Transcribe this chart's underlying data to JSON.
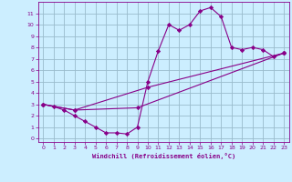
{
  "xlabel": "Windchill (Refroidissement éolien,°C)",
  "background_color": "#cceeff",
  "grid_color": "#99bbcc",
  "line_color": "#880088",
  "xlim": [
    -0.5,
    23.5
  ],
  "ylim": [
    -0.3,
    12
  ],
  "xticks": [
    0,
    1,
    2,
    3,
    4,
    5,
    6,
    7,
    8,
    9,
    10,
    11,
    12,
    13,
    14,
    15,
    16,
    17,
    18,
    19,
    20,
    21,
    22,
    23
  ],
  "yticks": [
    0,
    1,
    2,
    3,
    4,
    5,
    6,
    7,
    8,
    9,
    10,
    11
  ],
  "curve1_x": [
    0,
    1,
    2,
    3,
    4,
    5,
    6,
    7,
    8,
    9,
    10,
    11,
    12,
    13,
    14,
    15,
    16,
    17,
    18,
    19,
    20,
    21,
    22,
    23
  ],
  "curve1_y": [
    3.0,
    2.8,
    2.5,
    2.0,
    1.5,
    1.0,
    0.5,
    0.5,
    0.4,
    1.0,
    5.0,
    7.7,
    10.0,
    9.5,
    10.0,
    11.2,
    11.5,
    10.7,
    8.0,
    7.8,
    8.0,
    7.8,
    7.2,
    7.5
  ],
  "curve2_x": [
    0,
    3,
    10,
    23
  ],
  "curve2_y": [
    3.0,
    2.5,
    4.5,
    7.5
  ],
  "curve3_x": [
    0,
    3,
    9,
    23
  ],
  "curve3_y": [
    3.0,
    2.5,
    2.7,
    7.5
  ]
}
